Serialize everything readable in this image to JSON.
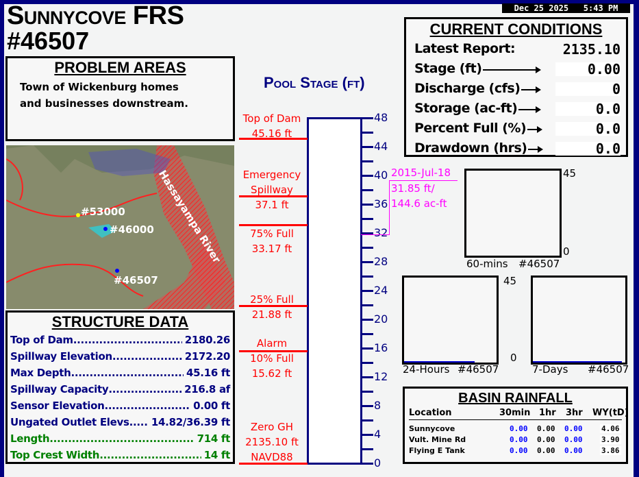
{
  "header": {
    "title_line1": "Sunnycove FRS",
    "title_line2": "#46507",
    "datetime": "Dec 25 2025   5:43 PM"
  },
  "problem_areas": {
    "heading": "PROBLEM AREAS",
    "text": "Town of Wickenburg homes and businesses downstream."
  },
  "map": {
    "labels": [
      "#53000",
      "#46000",
      "#46507",
      "Hassayampa River"
    ]
  },
  "structure_data": {
    "heading": "STRUCTURE DATA",
    "rows": [
      {
        "label": "Top of Dam",
        "value": "2180.26"
      },
      {
        "label": "Spillway Elevation",
        "value": "2172.20"
      },
      {
        "label": "Max Depth",
        "value": "45.16 ft"
      },
      {
        "label": "Spillway Capacity",
        "value": "216.8 af"
      },
      {
        "label": "Sensor Elevation",
        "value": "0.00 ft"
      },
      {
        "label": "Ungated Outlet Elevs",
        "value": "14.82/36.39 ft"
      },
      {
        "label": "Length",
        "value": "714 ft"
      },
      {
        "label": "Top Crest Width",
        "value": "14 ft"
      }
    ]
  },
  "pool_stage": {
    "title": "Pool Stage (ft)",
    "current_stage_ft": 0.0,
    "scale_min": 0,
    "scale_max": 48,
    "tick_labels": [
      "48",
      "44",
      "40",
      "36",
      "32",
      "28",
      "24",
      "20",
      "16",
      "12",
      "8",
      "4",
      "0"
    ],
    "levels": [
      {
        "lines": [
          "Top of Dam",
          "45.16 ft"
        ],
        "value": 45.16
      },
      {
        "lines": [
          "Emergency",
          "Spillway",
          "37.1 ft"
        ],
        "value": 37.1
      },
      {
        "lines": [
          "75% Full",
          "33.17 ft"
        ],
        "value": 33.17
      },
      {
        "lines": [
          "25% Full",
          "21.88 ft"
        ],
        "value": 21.88
      },
      {
        "lines": [
          "Alarm",
          "10% Full",
          "15.62 ft"
        ],
        "value": 15.62
      },
      {
        "lines": [
          "Zero GH",
          "2135.10 ft",
          "NAVD88"
        ],
        "value": 0
      }
    ],
    "record": {
      "date": "2015-Jul-18",
      "stage": "31.85 ft/",
      "storage": "144.6 ac-ft",
      "value": 31.85
    },
    "colors": {
      "levels": "#ff0000",
      "record": "#ff00ff",
      "scale": "#000080"
    }
  },
  "current_conditions": {
    "heading": "CURRENT CONDITIONS",
    "latest_report_label": "Latest Report:",
    "latest_report_value": "2135.10",
    "rows": [
      {
        "label": "Stage (ft)",
        "value": "0.00"
      },
      {
        "label": "Discharge (cfs)",
        "value": "0"
      },
      {
        "label": "Storage (ac-ft)",
        "value": "0.0"
      },
      {
        "label": "Percent Full (%)",
        "value": "0.0"
      },
      {
        "label": "Drawdown (hrs)",
        "value": "0.0"
      }
    ]
  },
  "mini_charts": [
    {
      "label": "60-mins",
      "id": "#46507",
      "ymax": "45",
      "ymin": "0"
    },
    {
      "label": "24-Hours",
      "id": "#46507",
      "ymax": "45",
      "ymin": "0"
    },
    {
      "label": "7-Days",
      "id": "#46507"
    }
  ],
  "basin_rainfall": {
    "heading": "BASIN RAINFALL",
    "columns": [
      "Location",
      "30min",
      "1hr",
      "3hr",
      "WY(tD)"
    ],
    "rows": [
      {
        "location": "Sunnycove",
        "m30": "0.00",
        "h1": "0.00",
        "h3": "0.00",
        "wy": "4.06"
      },
      {
        "location": "Vult. Mine Rd",
        "m30": "0.00",
        "h1": "0.00",
        "h3": "0.00",
        "wy": "3.90"
      },
      {
        "location": "Flying E Tank",
        "m30": "0.00",
        "h1": "0.00",
        "h3": "0.00",
        "wy": "3.86"
      }
    ]
  }
}
